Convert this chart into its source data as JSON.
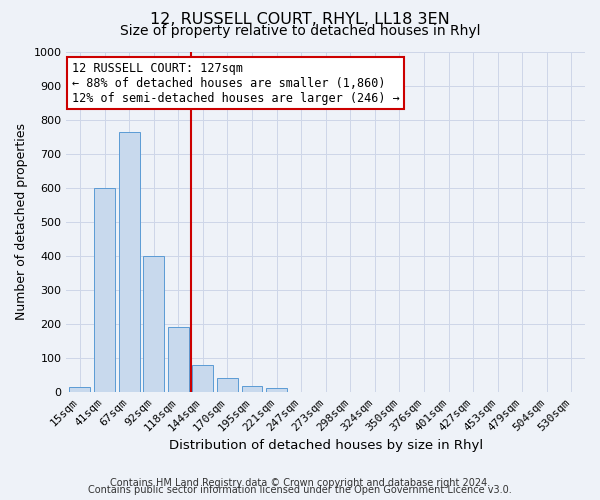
{
  "title": "12, RUSSELL COURT, RHYL, LL18 3EN",
  "subtitle": "Size of property relative to detached houses in Rhyl",
  "xlabel": "Distribution of detached houses by size in Rhyl",
  "ylabel": "Number of detached properties",
  "categories": [
    "15sqm",
    "41sqm",
    "67sqm",
    "92sqm",
    "118sqm",
    "144sqm",
    "170sqm",
    "195sqm",
    "221sqm",
    "247sqm",
    "273sqm",
    "298sqm",
    "324sqm",
    "350sqm",
    "376sqm",
    "401sqm",
    "427sqm",
    "453sqm",
    "479sqm",
    "504sqm",
    "530sqm"
  ],
  "values": [
    15,
    600,
    765,
    400,
    190,
    78,
    40,
    18,
    13,
    0,
    0,
    0,
    0,
    0,
    0,
    0,
    0,
    0,
    0,
    0,
    0
  ],
  "bar_color": "#c8d9ed",
  "bar_edge_color": "#5b9bd5",
  "vline_x": 4.5,
  "vline_color": "#cc0000",
  "annotation_line1": "12 RUSSELL COURT: 127sqm",
  "annotation_line2": "← 88% of detached houses are smaller (1,860)",
  "annotation_line3": "12% of semi-detached houses are larger (246) →",
  "annotation_box_color": "#ffffff",
  "annotation_box_edge": "#cc0000",
  "ylim": [
    0,
    1000
  ],
  "yticks": [
    0,
    100,
    200,
    300,
    400,
    500,
    600,
    700,
    800,
    900,
    1000
  ],
  "grid_color": "#cdd6e8",
  "background_color": "#eef2f8",
  "footnote1": "Contains HM Land Registry data © Crown copyright and database right 2024.",
  "footnote2": "Contains public sector information licensed under the Open Government Licence v3.0.",
  "title_fontsize": 11.5,
  "subtitle_fontsize": 10,
  "xlabel_fontsize": 9.5,
  "ylabel_fontsize": 9,
  "tick_fontsize": 8,
  "annot_fontsize": 8.5,
  "footnote_fontsize": 7
}
